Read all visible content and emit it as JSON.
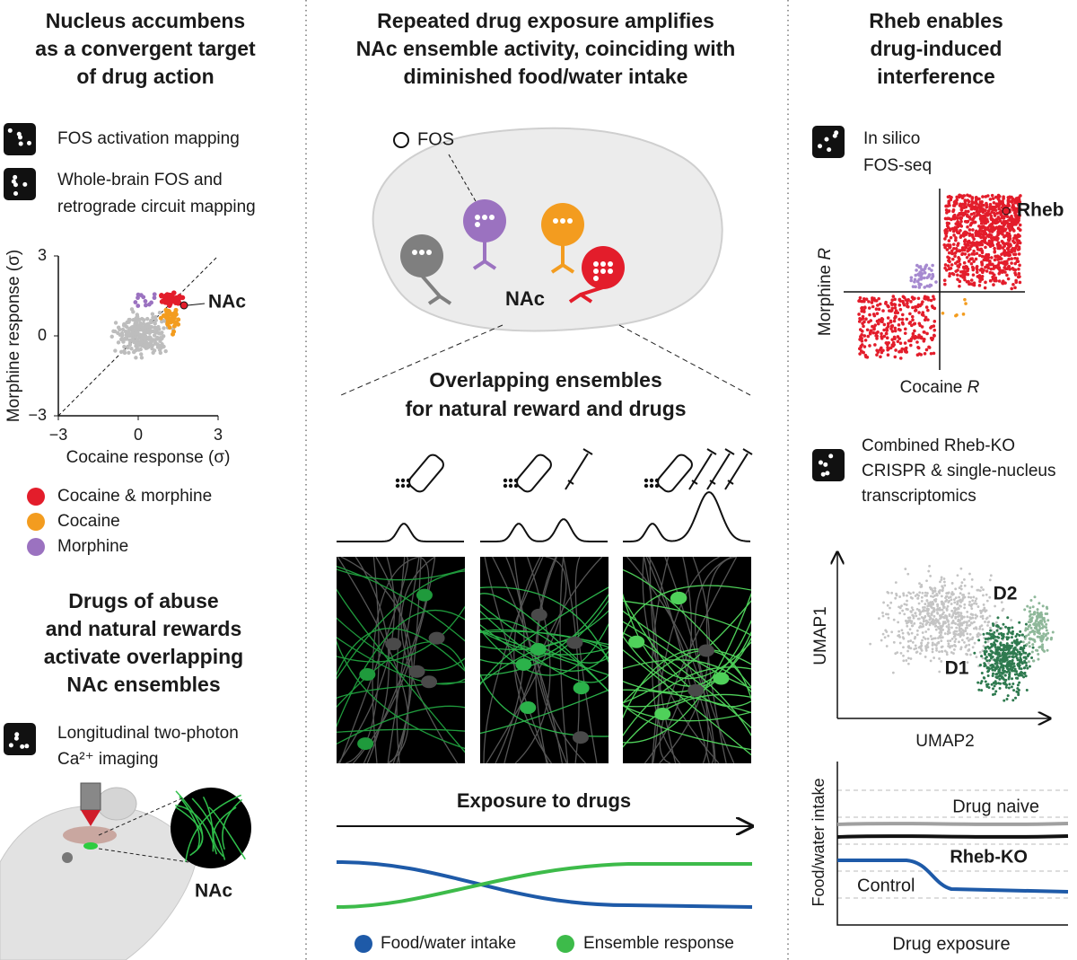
{
  "left": {
    "title": [
      "Nucleus accumbens",
      "as a convergent target",
      "of drug action"
    ],
    "methods": [
      [
        "FOS activation mapping"
      ],
      [
        "Whole-brain FOS and",
        "retrograde circuit mapping"
      ]
    ],
    "scatter": {
      "y_label": "Morphine response (σ)",
      "x_label": "Cocaine response (σ)",
      "y_ticks": [
        "3",
        "0",
        "−3"
      ],
      "x_ticks": [
        "−3",
        "0",
        "3"
      ],
      "annotation": "NAc"
    },
    "legend": [
      "Cocaine & morphine",
      "Cocaine",
      "Morphine"
    ],
    "subtitle": [
      "Drugs of abuse",
      "and natural rewards",
      "activate overlapping",
      "NAc ensembles"
    ],
    "imaging": [
      "Longitudinal two-photon",
      "Ca²⁺ imaging"
    ],
    "inset_label": "NAc"
  },
  "middle": {
    "title": [
      "Repeated drug exposure amplifies",
      "NAc ensemble activity, coinciding with",
      "diminished food/water intake"
    ],
    "fos_label": "FOS",
    "region_label": "NAc",
    "subtitle": [
      "Overlapping ensembles",
      "for natural reward and drugs"
    ],
    "arrow_label": "Exposure to drugs",
    "legend": [
      "Food/water intake",
      "Ensemble response"
    ]
  },
  "right": {
    "title": [
      "Rheb enables",
      "drug-induced",
      "interference"
    ],
    "method": [
      "In silico",
      "FOS-seq"
    ],
    "scatter": {
      "highlight": "Rheb",
      "y_label": [
        "Morphine ",
        "R"
      ],
      "x_label": [
        "Cocaine ",
        "R"
      ]
    },
    "method2": [
      "Combined Rheb-KO",
      "CRISPR & single-nucleus",
      "transcriptomics"
    ],
    "umap": {
      "y_label": "UMAP1",
      "x_label": "UMAP2",
      "clusters": [
        "D1",
        "D2"
      ]
    },
    "intake": {
      "y_label": "Food/water intake",
      "x_label": "Drug exposure",
      "lines": [
        "Drug naive",
        "Rheb-KO",
        "Control"
      ]
    }
  }
}
